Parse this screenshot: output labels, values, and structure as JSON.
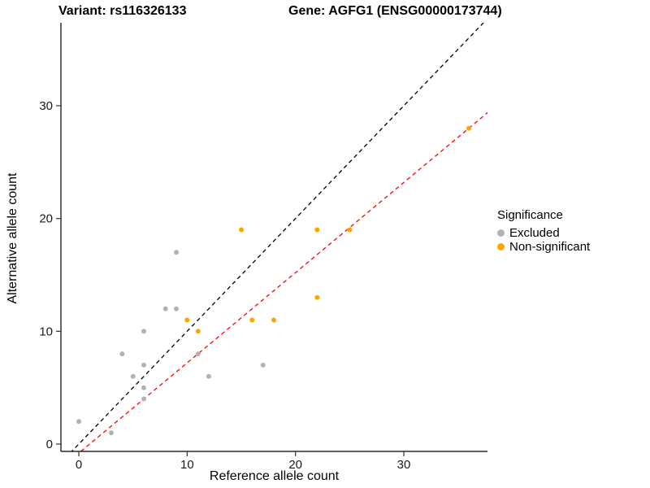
{
  "titles": {
    "variant": "Variant: rs116326133",
    "gene": "Gene: AGFG1 (ENSG00000173744)"
  },
  "chart_data": {
    "type": "scatter",
    "title": "",
    "xlabel": "Reference allele count",
    "ylabel": "Alternative allele count",
    "xlim": [
      -1.7,
      37.7
    ],
    "ylim": [
      -0.7,
      37.3
    ],
    "xticks": [
      0,
      10,
      20,
      30
    ],
    "yticks": [
      0,
      10,
      20,
      30
    ],
    "grid": false,
    "background": "#ffffff",
    "series": [
      {
        "name": "Excluded",
        "color": "#b2b2b2",
        "points": [
          [
            0,
            2
          ],
          [
            3,
            1
          ],
          [
            4,
            8
          ],
          [
            5,
            6
          ],
          [
            6,
            4
          ],
          [
            6,
            5
          ],
          [
            6,
            7
          ],
          [
            6,
            10
          ],
          [
            8,
            12
          ],
          [
            9,
            12
          ],
          [
            9,
            17
          ],
          [
            11,
            8
          ],
          [
            12,
            6
          ],
          [
            17,
            7
          ]
        ]
      },
      {
        "name": "Non-significant",
        "color": "#ffa500",
        "points": [
          [
            10,
            11
          ],
          [
            11,
            10
          ],
          [
            15,
            19
          ],
          [
            16,
            11
          ],
          [
            18,
            11
          ],
          [
            22,
            13
          ],
          [
            22,
            19
          ],
          [
            25,
            19
          ],
          [
            36,
            28
          ]
        ]
      }
    ],
    "lines": [
      {
        "name": "identity",
        "color": "#000000",
        "style": "dashed",
        "slope": 1,
        "intercept": 0
      },
      {
        "name": "fit",
        "color": "#ff0000",
        "style": "dashed",
        "slope": 0.8,
        "intercept": -0.8
      }
    ],
    "legend": {
      "title": "Significance",
      "position": "right",
      "entries": [
        "Excluded",
        "Non-significant"
      ]
    }
  }
}
